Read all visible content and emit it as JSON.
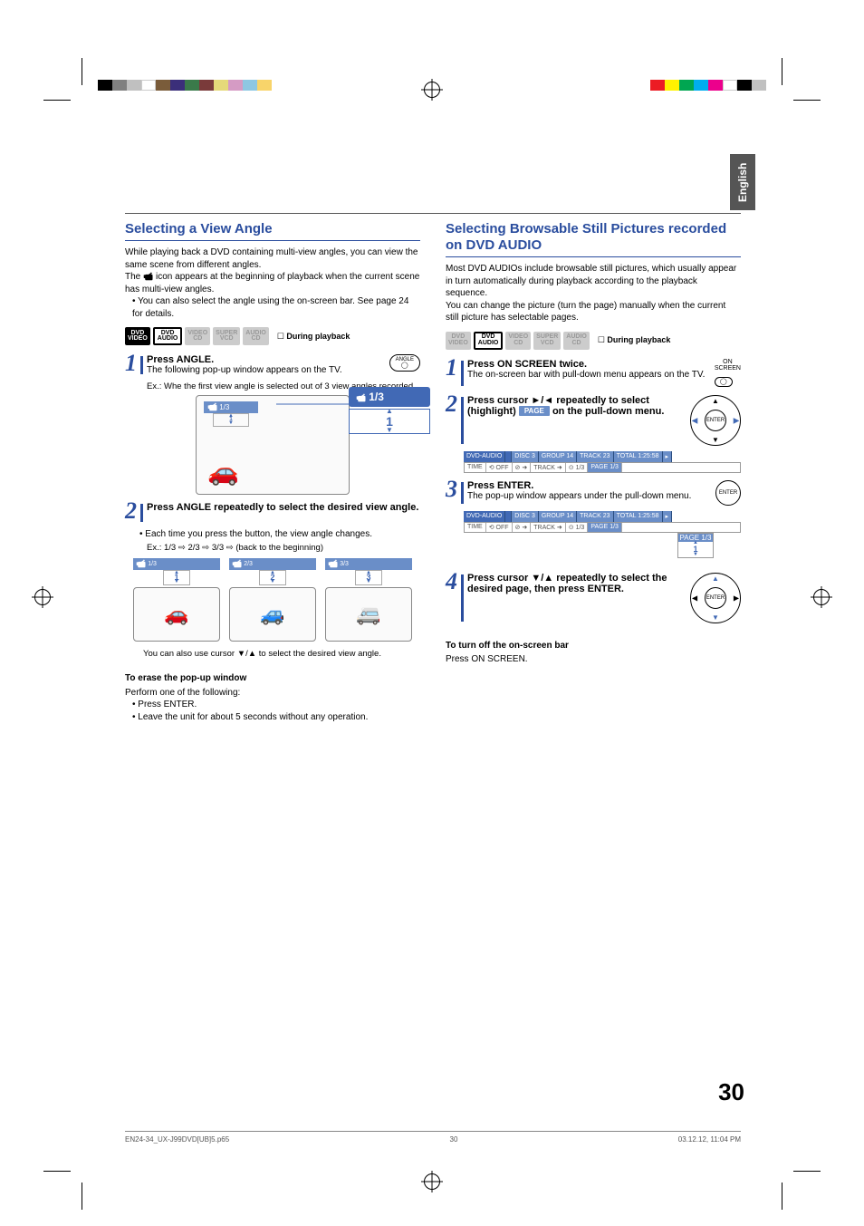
{
  "side_tab": "English",
  "colorbar_left": [
    "#000",
    "#808080",
    "#c0c0c0",
    "#fff",
    "#7a5c3a",
    "#3b2f7a",
    "#3a7a4a",
    "#7a3a3a",
    "#e5d97a",
    "#d59bc4",
    "#8ec7e2",
    "#f8d46a"
  ],
  "colorbar_right": [
    "#ec1c24",
    "#fff200",
    "#00a651",
    "#00aeef",
    "#ec008c",
    "#fff",
    "#000",
    "#c0c0c0"
  ],
  "left": {
    "heading": "Selecting a View Angle",
    "intro1": "While playing back a DVD containing multi-view angles, you can view the same scene from different angles.",
    "intro2_a": "The ",
    "intro2_b": " icon appears at the beginning of playback when the current scene has multi-view angles.",
    "bullet1": "You can also select the angle using the on-screen bar. See page 24 for details.",
    "badges": {
      "dvd_video": "DVD VIDEO",
      "dvd_audio": "DVD AUDIO",
      "video_cd": "VIDEO CD",
      "super_vcd": "SUPER VCD",
      "audio_cd": "AUDIO CD",
      "during": "During playback"
    },
    "step1_title": "Press ANGLE.",
    "step1_text": "The following pop-up window appears on the TV.",
    "step1_btn": "ANGLE",
    "step1_example": "Ex.: Whe the first view angle is selected out of 3 view angles recorded.",
    "callout_ratio": "1/3",
    "callout_num": "1",
    "step2_title": "Press ANGLE repeatedly to select the desired view angle.",
    "step2_bullet": "Each time you press the button, the view angle changes.",
    "step2_example": "Ex.: 1/3 ⇨ 2/3 ⇨ 3/3 ⇨ (back to the beginning)",
    "angles": [
      {
        "ratio": "1/3",
        "num": "1"
      },
      {
        "ratio": "2/3",
        "num": "2"
      },
      {
        "ratio": "3/3",
        "num": "3"
      }
    ],
    "step2_foot": "You can also use cursor ∞/5 to select the desired view angle.",
    "erase_h": "To erase the pop-up window",
    "erase_p": "Perform one of the following:",
    "erase_b1": "Press ENTER.",
    "erase_b2": "Leave the unit for about 5 seconds without any operation."
  },
  "right": {
    "heading": "Selecting Browsable Still Pictures recorded on DVD AUDIO",
    "intro1": "Most DVD AUDIOs include browsable still pictures, which usually appear in turn automatically during playback according to the playback sequence.",
    "intro2": "You can change the picture (turn the page) manually when the current still picture has selectable pages.",
    "badges": {
      "during": "During playback"
    },
    "step1_title": "Press ON SCREEN twice.",
    "step1_text": "The on-screen bar with pull-down menu appears on the TV.",
    "step1_btn_top": "ON",
    "step1_btn_bot": "SCREEN",
    "step2_title_a": "Press cursor ",
    "step2_title_b": " repeatedly to select (highlight) ",
    "step2_title_c": " on the pull-down menu.",
    "page_chip": "PAGE",
    "osd1": {
      "row1": [
        "DVD-AUDIO",
        "",
        "DISC 3",
        "GROUP 14",
        "TRACK 23",
        "TOTAL  1:25:58",
        "▸"
      ],
      "row2": [
        "TIME",
        "⟲ OFF",
        "⊘ ➜",
        "TRACK ➜",
        "⊙  1/3",
        "PAGE 1/3"
      ]
    },
    "step3_title": "Press ENTER.",
    "step3_text": "The pop-up window appears under the pull-down menu.",
    "step3_btn": "ENTER",
    "popup_label": "PAGE 1/3",
    "popup_num": "1",
    "step4_title_a": "Press cursor ",
    "step4_title_b": " repeatedly to select the desired page, then press ENTER.",
    "step4_btn": "ENTER",
    "off_h": "To turn off the on-screen bar",
    "off_p": "Press ON SCREEN."
  },
  "page_number": "30",
  "footer": {
    "file": "EN24-34_UX-J99DVD[UB]5.p65",
    "page": "30",
    "date": "03.12.12, 11:04 PM"
  }
}
